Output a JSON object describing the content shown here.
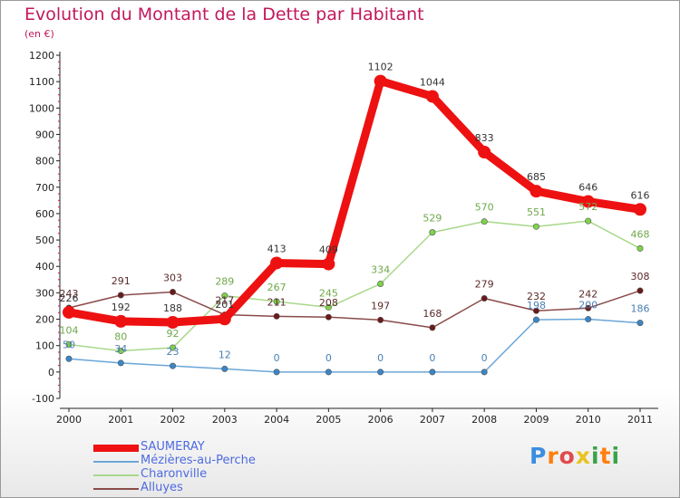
{
  "title": "Evolution du Montant de la Dette par Habitant",
  "subtitle": "(en €)",
  "logo": {
    "letters": [
      "P",
      "r",
      "o",
      "x",
      "i",
      "t",
      "i"
    ],
    "colors": [
      "#3b8ee0",
      "#ff7f0e",
      "#e14b4b",
      "#e8c41d",
      "#3aa34a",
      "#ff7f0e",
      "#3aa34a"
    ]
  },
  "chart_data": {
    "type": "line",
    "title": "Evolution du Montant de la Dette par Habitant",
    "subtitle": "(en €)",
    "x": [
      "2000",
      "2001",
      "2002",
      "2003",
      "2004",
      "2005",
      "2006",
      "2007",
      "2008",
      "2009",
      "2010",
      "2011"
    ],
    "ylim": [
      -100,
      1200
    ],
    "yticks": [
      -100,
      0,
      100,
      200,
      300,
      400,
      500,
      600,
      700,
      800,
      900,
      1000,
      1100,
      1200
    ],
    "ytick_labels": [
      "-100",
      "0",
      "100",
      "200",
      "300",
      "400",
      "500",
      "600",
      "700",
      "800",
      "900",
      "1000",
      "1100",
      "1200"
    ],
    "grid": false,
    "legend_position": "bottom-left",
    "series": [
      {
        "name": "SAUMERAY",
        "color": "#ee1111",
        "label_color": "#ee1111",
        "marker_color": "#ee1111",
        "bold": true,
        "values": [
          226,
          192,
          188,
          201,
          413,
          409,
          1102,
          1044,
          833,
          685,
          646,
          616
        ]
      },
      {
        "name": "Mézières-au-Perche",
        "color": "#6aa6d8",
        "label_color": "#4a7fb5",
        "marker_color": "#3a86c8",
        "bold": false,
        "values": [
          50,
          34,
          23,
          12,
          0,
          0,
          0,
          0,
          0,
          198,
          200,
          186
        ]
      },
      {
        "name": "Charonville",
        "color": "#a8d88a",
        "label_color": "#6fa84a",
        "marker_color": "#7ed34a",
        "bold": false,
        "values": [
          104,
          80,
          92,
          289,
          267,
          245,
          334,
          529,
          570,
          551,
          572,
          468
        ]
      },
      {
        "name": "Alluyes",
        "color": "#8b4a4a",
        "label_color": "#5c2a2a",
        "marker_color": "#6b1a1a",
        "bold": false,
        "values": [
          243,
          291,
          303,
          217,
          211,
          208,
          197,
          168,
          279,
          232,
          242,
          308
        ]
      }
    ],
    "data_labels": {
      "SAUMERAY": [
        "226",
        "192",
        "188",
        "201",
        "413",
        "409",
        "1102",
        "1044",
        "833",
        "685",
        "646",
        "616"
      ],
      "Mézières-au-Perche": [
        "50",
        "34",
        "23",
        "12",
        "0",
        "0",
        "0",
        "0",
        "0",
        "198",
        "200",
        "186"
      ],
      "Charonville": [
        "104",
        "80",
        "92",
        "289",
        "267",
        "245",
        "334",
        "529",
        "570",
        "551",
        "572",
        "468"
      ],
      "Alluyes": [
        "243",
        "291",
        "303",
        "217",
        "211",
        "208",
        "197",
        "168",
        "279",
        "232",
        "242",
        "308"
      ]
    }
  },
  "legend": [
    {
      "label": "SAUMERAY",
      "color": "#ee1111",
      "text_color": "#4e6be0",
      "thick": true
    },
    {
      "label": "Mézières-au-Perche",
      "color": "#6aa6d8",
      "text_color": "#4e6be0",
      "thick": false
    },
    {
      "label": "Charonville",
      "color": "#a8d88a",
      "text_color": "#4e6be0",
      "thick": false
    },
    {
      "label": "Alluyes",
      "color": "#8b4a4a",
      "text_color": "#4e6be0",
      "thick": false
    }
  ]
}
